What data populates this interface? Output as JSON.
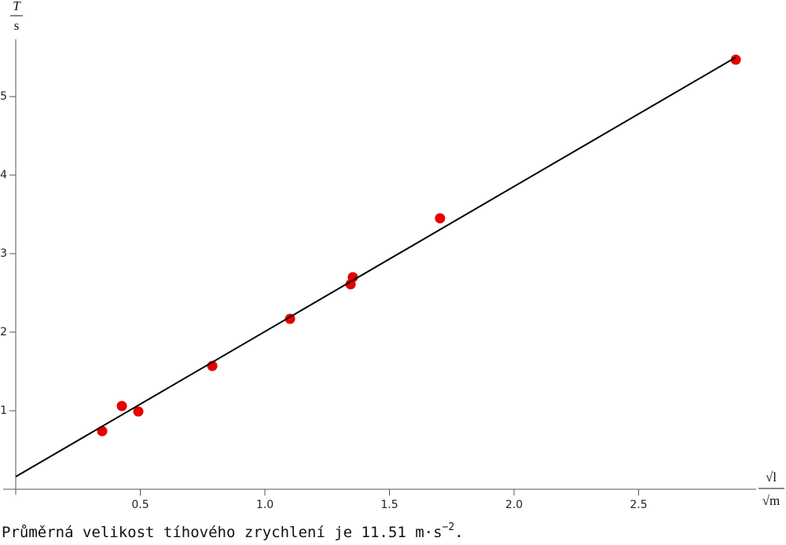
{
  "chart_data": {
    "type": "scatter",
    "x_label": {
      "numerator": "√l",
      "denominator": "√m"
    },
    "y_label": {
      "numerator": "T",
      "denominator": "s"
    },
    "x": [
      0.347,
      0.426,
      0.492,
      0.789,
      1.101,
      1.344,
      1.353,
      1.703,
      2.89
    ],
    "series": [
      {
        "type": "scatter",
        "color": "#e60000",
        "values": [
          0.74,
          1.06,
          0.99,
          1.57,
          2.17,
          2.61,
          2.7,
          3.45,
          5.47
        ]
      },
      {
        "type": "line",
        "color": "#000000",
        "x": [
          0,
          2.89
        ],
        "values": [
          0.16,
          5.5
        ]
      }
    ],
    "xlim": [
      0,
      3.0
    ],
    "ylim": [
      0,
      5.7
    ],
    "xticks": [
      0.5,
      {
        "value": 1.0,
        "label": "1.0"
      },
      1.5,
      {
        "value": 2.0,
        "label": "2.0"
      },
      2.5
    ],
    "yticks": [
      1,
      2,
      3,
      4,
      5
    ],
    "caption": {
      "text": "Průměrná velikost tíhového zrychlení je 11.51 m·s",
      "superscript": "−2",
      "end": "."
    }
  }
}
